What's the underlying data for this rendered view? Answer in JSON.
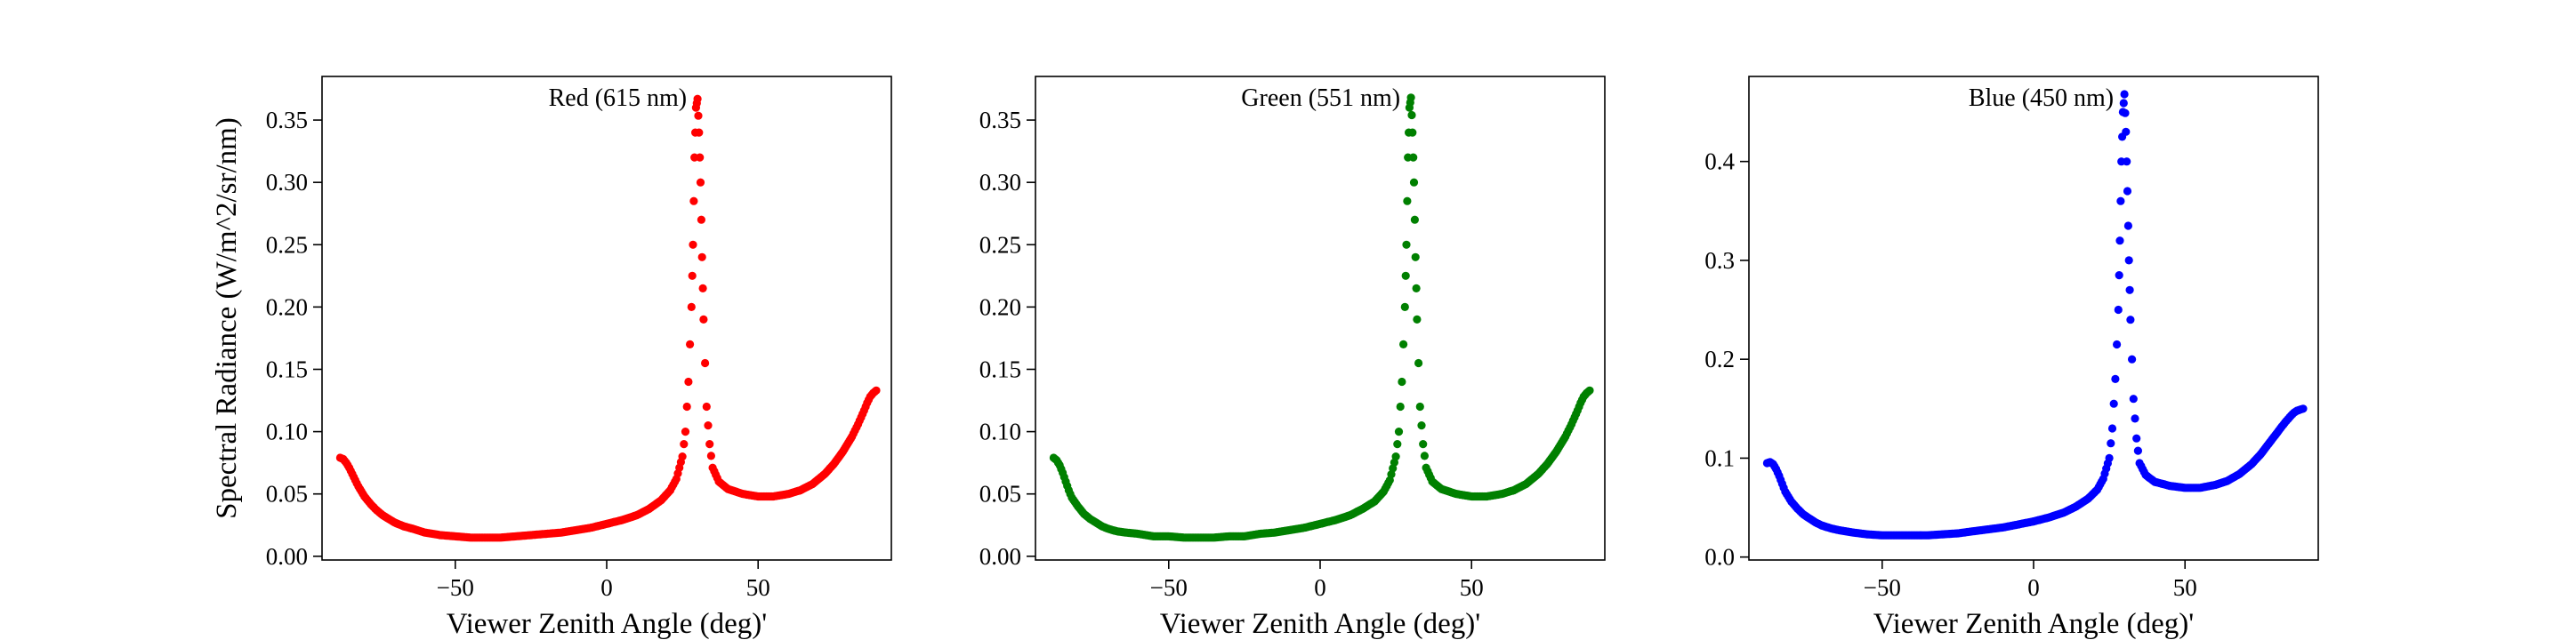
{
  "chart_data": [
    {
      "type": "scatter",
      "title": "Red (615 nm)",
      "xlabel": "Viewer Zenith Angle (deg)'",
      "ylabel": "Spectral Radiance (W/m^2/sr/nm)",
      "xlim": [
        -94,
        94
      ],
      "ylim": [
        -0.003,
        0.385
      ],
      "xticks": [
        -50,
        0,
        50
      ],
      "xtick_labels": [
        "−50",
        "0",
        "50"
      ],
      "yticks": [
        0.0,
        0.05,
        0.1,
        0.15,
        0.2,
        0.25,
        0.3,
        0.35
      ],
      "ytick_labels": [
        "0.00",
        "0.05",
        "0.10",
        "0.15",
        "0.20",
        "0.25",
        "0.30",
        "0.35"
      ],
      "color": "#ff0000",
      "peak_x": 30,
      "series": [
        {
          "x": [
            -88,
            -87,
            -86,
            -85,
            -84,
            -83,
            -82,
            -80,
            -78,
            -76,
            -74,
            -72,
            -70,
            -67,
            -64,
            -60,
            -55,
            -50,
            -45,
            -40,
            -35,
            -30,
            -25,
            -20,
            -15,
            -10,
            -5,
            0,
            5,
            10,
            14,
            18,
            21,
            23,
            25,
            26,
            27,
            28,
            28.5,
            29,
            29.5,
            30,
            30.5,
            31,
            31.5,
            32,
            33,
            34,
            35,
            37,
            40,
            45,
            50,
            55,
            60,
            64,
            68,
            72,
            75,
            78,
            81,
            83,
            85,
            86,
            87,
            88,
            89
          ],
          "y": [
            0.079,
            0.078,
            0.075,
            0.071,
            0.066,
            0.061,
            0.056,
            0.048,
            0.042,
            0.037,
            0.033,
            0.03,
            0.027,
            0.024,
            0.022,
            0.019,
            0.017,
            0.016,
            0.015,
            0.015,
            0.015,
            0.016,
            0.017,
            0.018,
            0.019,
            0.021,
            0.023,
            0.026,
            0.029,
            0.033,
            0.038,
            0.045,
            0.053,
            0.062,
            0.08,
            0.1,
            0.14,
            0.2,
            0.25,
            0.32,
            0.36,
            0.367,
            0.34,
            0.3,
            0.24,
            0.19,
            0.12,
            0.09,
            0.071,
            0.06,
            0.054,
            0.05,
            0.048,
            0.048,
            0.05,
            0.053,
            0.058,
            0.066,
            0.074,
            0.084,
            0.096,
            0.106,
            0.117,
            0.123,
            0.128,
            0.131,
            0.133
          ]
        }
      ]
    },
    {
      "type": "scatter",
      "title": "Green (551 nm)",
      "xlabel": "Viewer Zenith Angle (deg)'",
      "ylabel": "",
      "xlim": [
        -94,
        94
      ],
      "ylim": [
        -0.003,
        0.385
      ],
      "xticks": [
        -50,
        0,
        50
      ],
      "xtick_labels": [
        "−50",
        "0",
        "50"
      ],
      "yticks": [
        0.0,
        0.05,
        0.1,
        0.15,
        0.2,
        0.25,
        0.3,
        0.35
      ],
      "ytick_labels": [
        "0.00",
        "0.05",
        "0.10",
        "0.15",
        "0.20",
        "0.25",
        "0.30",
        "0.35"
      ],
      "color": "#008000",
      "peak_x": 30,
      "series": [
        {
          "x": [
            -88,
            -87,
            -86,
            -85,
            -84,
            -83,
            -82,
            -80,
            -78,
            -76,
            -74,
            -72,
            -70,
            -67,
            -64,
            -60,
            -55,
            -50,
            -45,
            -40,
            -35,
            -30,
            -25,
            -20,
            -15,
            -10,
            -5,
            0,
            5,
            10,
            14,
            18,
            21,
            23,
            25,
            26,
            27,
            28,
            28.5,
            29,
            29.5,
            30,
            30.5,
            31,
            31.5,
            32,
            33,
            34,
            35,
            37,
            40,
            45,
            50,
            55,
            60,
            64,
            68,
            72,
            75,
            78,
            81,
            83,
            85,
            86,
            87,
            88,
            89
          ],
          "y": [
            0.079,
            0.077,
            0.073,
            0.067,
            0.06,
            0.053,
            0.047,
            0.04,
            0.034,
            0.03,
            0.027,
            0.024,
            0.022,
            0.02,
            0.019,
            0.018,
            0.016,
            0.016,
            0.015,
            0.015,
            0.015,
            0.016,
            0.016,
            0.018,
            0.019,
            0.021,
            0.023,
            0.026,
            0.029,
            0.033,
            0.038,
            0.044,
            0.052,
            0.061,
            0.08,
            0.1,
            0.14,
            0.2,
            0.25,
            0.32,
            0.36,
            0.368,
            0.34,
            0.3,
            0.24,
            0.19,
            0.12,
            0.09,
            0.071,
            0.06,
            0.054,
            0.05,
            0.048,
            0.048,
            0.05,
            0.053,
            0.058,
            0.066,
            0.074,
            0.084,
            0.096,
            0.106,
            0.117,
            0.123,
            0.128,
            0.131,
            0.133
          ]
        }
      ]
    },
    {
      "type": "scatter",
      "title": "Blue (450 nm)",
      "xlabel": "Viewer Zenith Angle (deg)'",
      "ylabel": "",
      "xlim": [
        -94,
        94
      ],
      "ylim": [
        -0.003,
        0.486
      ],
      "xticks": [
        -50,
        0,
        50
      ],
      "xtick_labels": [
        "−50",
        "0",
        "50"
      ],
      "yticks": [
        0.0,
        0.1,
        0.2,
        0.3,
        0.4
      ],
      "ytick_labels": [
        "0.0",
        "0.1",
        "0.2",
        "0.3",
        "0.4"
      ],
      "color": "#0000ff",
      "peak_x": 30,
      "series": [
        {
          "x": [
            -88,
            -87,
            -86,
            -85,
            -84,
            -83,
            -82,
            -80,
            -78,
            -76,
            -74,
            -72,
            -70,
            -67,
            -64,
            -60,
            -55,
            -50,
            -45,
            -40,
            -35,
            -30,
            -25,
            -20,
            -15,
            -10,
            -5,
            0,
            5,
            10,
            14,
            18,
            21,
            23,
            25,
            26,
            27,
            28,
            28.5,
            29,
            29.5,
            30,
            30.5,
            31,
            31.5,
            32,
            33,
            34,
            35,
            37,
            40,
            45,
            50,
            55,
            60,
            64,
            68,
            72,
            75,
            78,
            81,
            83,
            85,
            86,
            87,
            88,
            89
          ],
          "y": [
            0.095,
            0.096,
            0.094,
            0.089,
            0.082,
            0.074,
            0.066,
            0.056,
            0.049,
            0.043,
            0.039,
            0.035,
            0.032,
            0.029,
            0.027,
            0.025,
            0.023,
            0.022,
            0.022,
            0.022,
            0.022,
            0.023,
            0.024,
            0.026,
            0.028,
            0.03,
            0.033,
            0.036,
            0.04,
            0.045,
            0.051,
            0.059,
            0.068,
            0.079,
            0.1,
            0.13,
            0.18,
            0.25,
            0.32,
            0.4,
            0.45,
            0.468,
            0.43,
            0.37,
            0.3,
            0.24,
            0.16,
            0.12,
            0.095,
            0.083,
            0.076,
            0.072,
            0.07,
            0.07,
            0.073,
            0.077,
            0.084,
            0.094,
            0.104,
            0.116,
            0.128,
            0.136,
            0.143,
            0.146,
            0.148,
            0.149,
            0.15
          ]
        }
      ]
    }
  ]
}
